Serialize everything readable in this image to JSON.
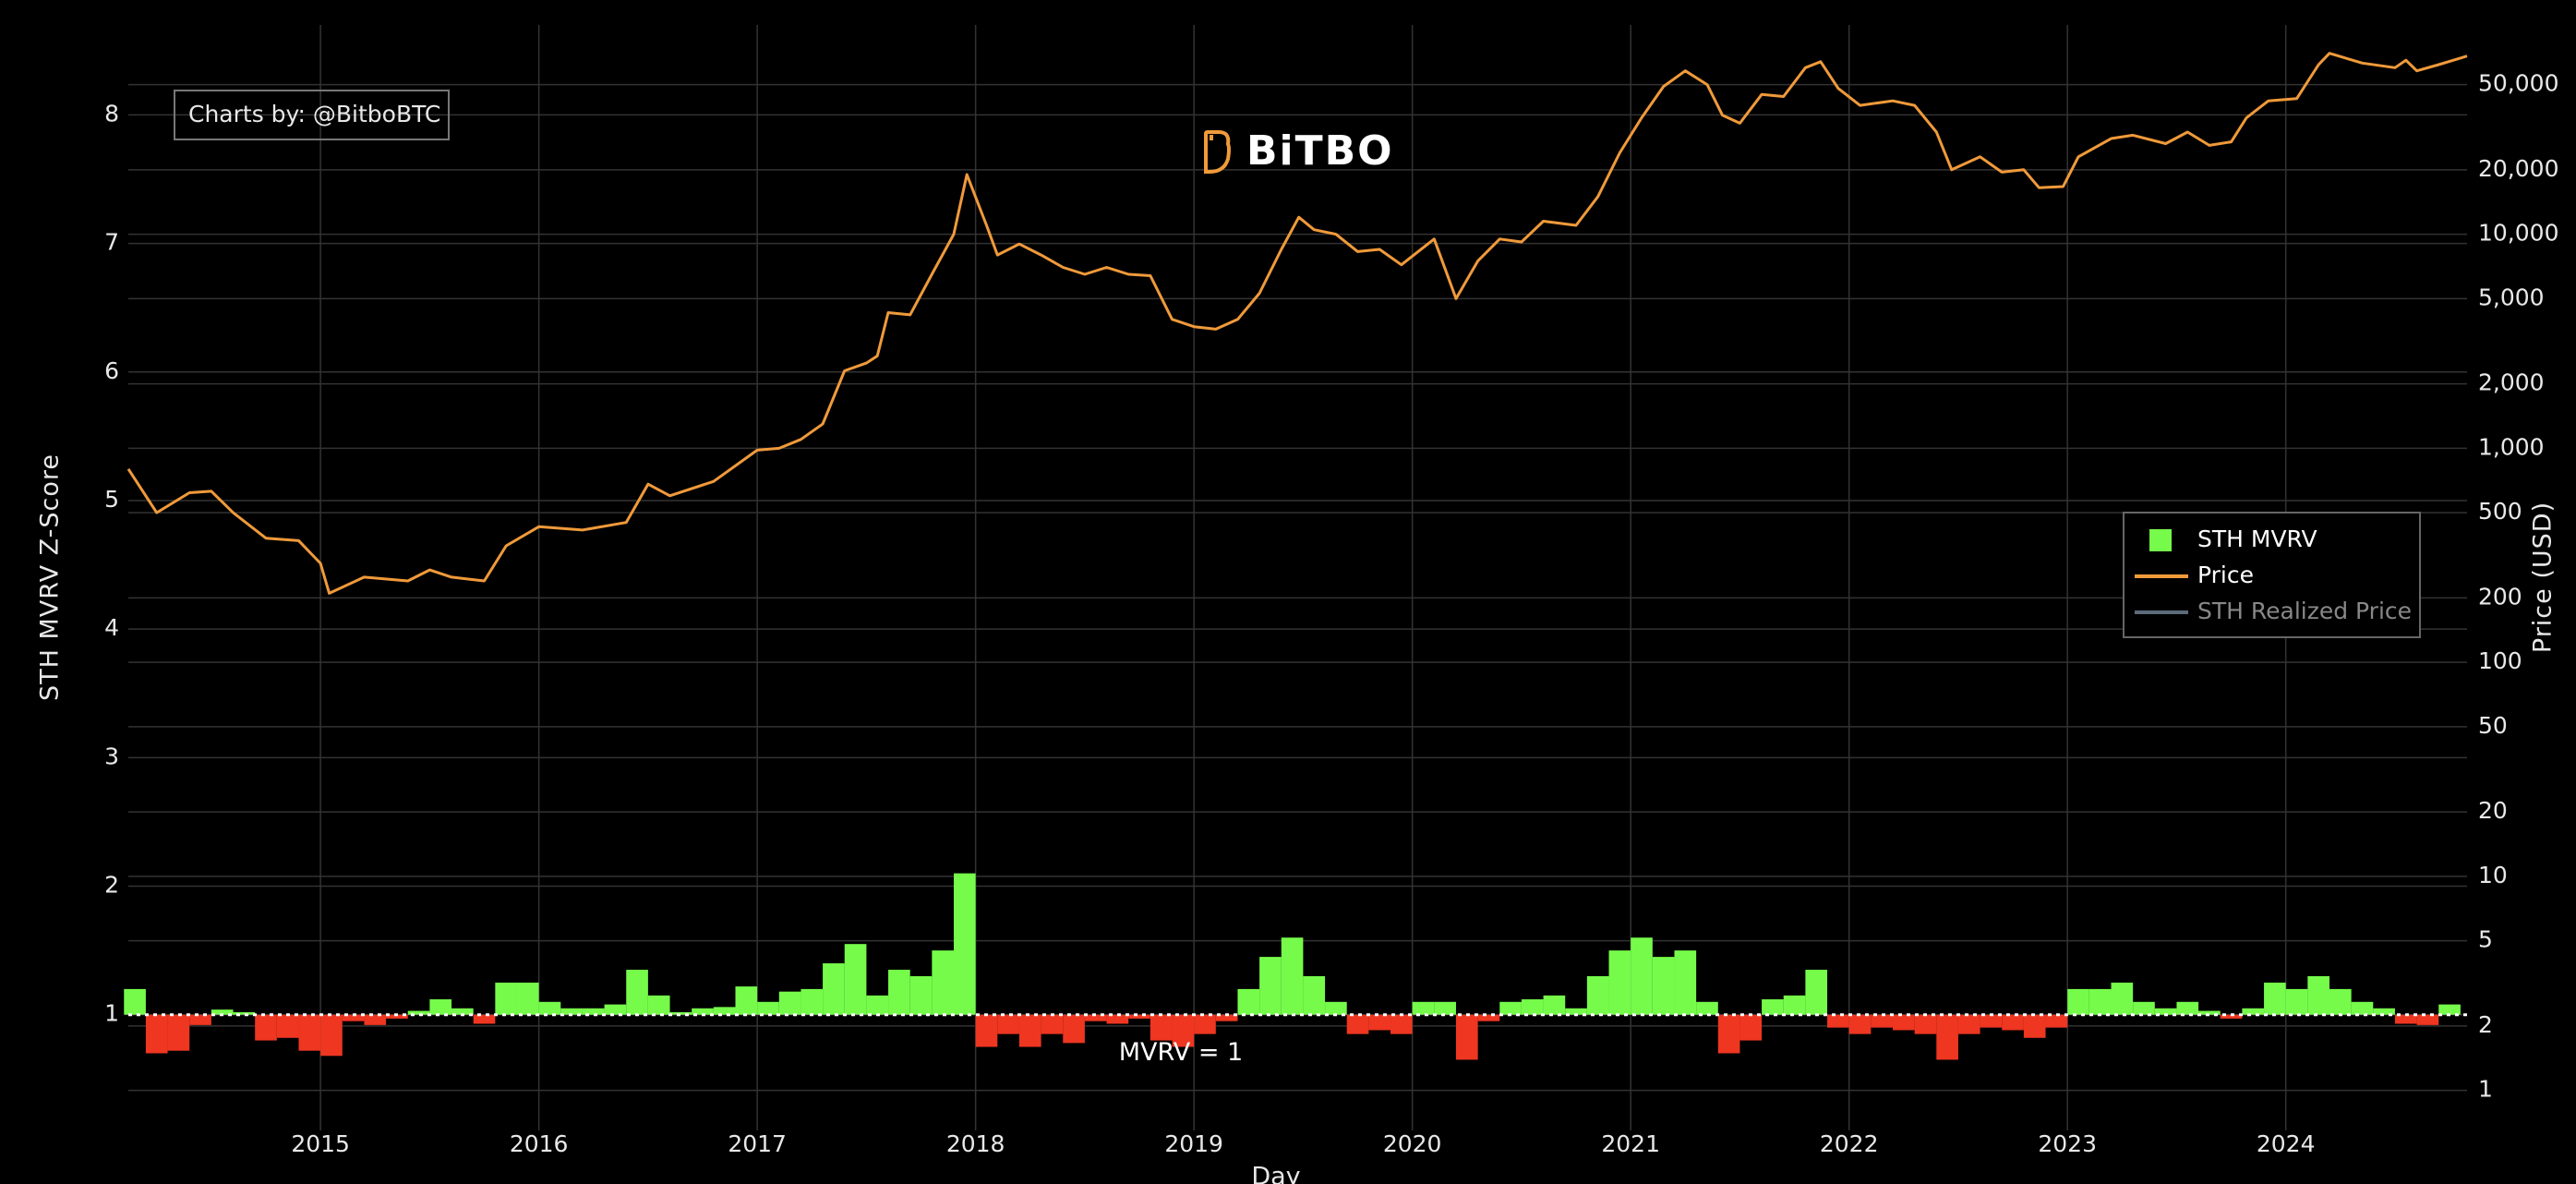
{
  "chart_data": {
    "type": "bar-line",
    "logo": "BiTBO",
    "credit": "Charts by: @BitboBTC",
    "x_label": "Day",
    "y_label": "STH MVRV Z-Score",
    "y2_label": "Price (USD)",
    "reference_line": {
      "y": 1,
      "label": "MVRV = 1"
    },
    "xlim": [
      2014.12,
      2024.83
    ],
    "xticks": [
      2015,
      2016,
      2017,
      2018,
      2019,
      2020,
      2021,
      2022,
      2023,
      2024
    ],
    "ylim": [
      0.1,
      8.7
    ],
    "yticks": [
      1,
      2,
      3,
      4,
      5,
      6,
      7,
      8
    ],
    "y2lim": [
      0.65,
      95000
    ],
    "y2log": true,
    "y2ticks": [
      1,
      2,
      5,
      10,
      20,
      50,
      100,
      200,
      500,
      {
        "value": 1000,
        "label": "1,000"
      },
      {
        "value": 2000,
        "label": "2,000"
      },
      {
        "value": 5000,
        "label": "5,000"
      },
      {
        "value": 10000,
        "label": "10,000"
      },
      {
        "value": 20000,
        "label": "20,000"
      },
      {
        "value": 50000,
        "label": "50,000"
      }
    ],
    "grid": true,
    "legend_position": "right",
    "series": [
      {
        "name": "STH MVRV",
        "type": "bar",
        "color": "#76fb4a",
        "negative_color": "#ee3621",
        "x": [
          2014.15,
          2014.25,
          2014.35,
          2014.45,
          2014.55,
          2014.65,
          2014.75,
          2014.85,
          2014.95,
          2015.05,
          2015.15,
          2015.25,
          2015.35,
          2015.45,
          2015.55,
          2015.65,
          2015.75,
          2015.85,
          2015.95,
          2016.05,
          2016.15,
          2016.25,
          2016.35,
          2016.45,
          2016.55,
          2016.65,
          2016.75,
          2016.85,
          2016.95,
          2017.05,
          2017.15,
          2017.25,
          2017.35,
          2017.45,
          2017.55,
          2017.65,
          2017.75,
          2017.85,
          2017.95,
          2018.05,
          2018.15,
          2018.25,
          2018.35,
          2018.45,
          2018.55,
          2018.65,
          2018.75,
          2018.85,
          2018.95,
          2019.05,
          2019.15,
          2019.25,
          2019.35,
          2019.45,
          2019.55,
          2019.65,
          2019.75,
          2019.85,
          2019.95,
          2020.05,
          2020.15,
          2020.25,
          2020.35,
          2020.45,
          2020.55,
          2020.65,
          2020.75,
          2020.85,
          2020.95,
          2021.05,
          2021.15,
          2021.25,
          2021.35,
          2021.45,
          2021.55,
          2021.65,
          2021.75,
          2021.85,
          2021.95,
          2022.05,
          2022.15,
          2022.25,
          2022.35,
          2022.45,
          2022.55,
          2022.65,
          2022.75,
          2022.85,
          2022.95,
          2023.05,
          2023.15,
          2023.25,
          2023.35,
          2023.45,
          2023.55,
          2023.65,
          2023.75,
          2023.85,
          2023.95,
          2024.05,
          2024.15,
          2024.25,
          2024.35,
          2024.45,
          2024.55,
          2024.65,
          2024.75
        ],
        "values": [
          1.2,
          0.7,
          0.72,
          0.92,
          1.04,
          1.02,
          0.8,
          0.82,
          0.72,
          0.68,
          0.95,
          0.92,
          0.97,
          1.03,
          1.12,
          1.05,
          0.93,
          1.25,
          1.25,
          1.1,
          1.05,
          1.05,
          1.08,
          1.35,
          1.15,
          1.02,
          1.05,
          1.06,
          1.22,
          1.1,
          1.18,
          1.2,
          1.4,
          1.55,
          1.15,
          1.35,
          1.3,
          1.5,
          2.1,
          0.75,
          0.85,
          0.75,
          0.85,
          0.78,
          0.95,
          0.93,
          0.97,
          0.8,
          0.75,
          0.85,
          0.95,
          1.2,
          1.45,
          1.6,
          1.3,
          1.1,
          0.85,
          0.88,
          0.85,
          1.1,
          1.1,
          0.65,
          0.95,
          1.1,
          1.12,
          1.15,
          1.05,
          1.3,
          1.5,
          1.6,
          1.45,
          1.5,
          1.1,
          0.7,
          0.8,
          1.12,
          1.15,
          1.35,
          0.9,
          0.85,
          0.9,
          0.88,
          0.85,
          0.65,
          0.85,
          0.9,
          0.88,
          0.82,
          0.9,
          1.2,
          1.2,
          1.25,
          1.1,
          1.05,
          1.1,
          1.03,
          0.97,
          1.05,
          1.25,
          1.2,
          1.3,
          1.2,
          1.1,
          1.05,
          0.93,
          0.92,
          1.08
        ]
      },
      {
        "name": "Price",
        "type": "line",
        "axis": "y2",
        "color": "#f09a3a",
        "x": [
          2014.12,
          2014.25,
          2014.4,
          2014.5,
          2014.6,
          2014.75,
          2014.9,
          2015.0,
          2015.04,
          2015.2,
          2015.4,
          2015.5,
          2015.6,
          2015.75,
          2015.85,
          2016.0,
          2016.2,
          2016.4,
          2016.5,
          2016.6,
          2016.8,
          2017.0,
          2017.1,
          2017.2,
          2017.3,
          2017.4,
          2017.5,
          2017.55,
          2017.6,
          2017.7,
          2017.8,
          2017.9,
          2017.96,
          2018.05,
          2018.1,
          2018.2,
          2018.3,
          2018.4,
          2018.5,
          2018.6,
          2018.7,
          2018.8,
          2018.9,
          2019.0,
          2019.1,
          2019.2,
          2019.3,
          2019.4,
          2019.48,
          2019.55,
          2019.65,
          2019.75,
          2019.85,
          2019.95,
          2020.1,
          2020.2,
          2020.3,
          2020.4,
          2020.5,
          2020.6,
          2020.75,
          2020.85,
          2020.95,
          2021.05,
          2021.15,
          2021.25,
          2021.35,
          2021.42,
          2021.5,
          2021.6,
          2021.7,
          2021.8,
          2021.87,
          2021.95,
          2022.05,
          2022.2,
          2022.3,
          2022.4,
          2022.47,
          2022.6,
          2022.7,
          2022.8,
          2022.87,
          2022.98,
          2023.05,
          2023.2,
          2023.3,
          2023.45,
          2023.55,
          2023.65,
          2023.75,
          2023.82,
          2023.92,
          2024.05,
          2024.15,
          2024.2,
          2024.35,
          2024.5,
          2024.55,
          2024.6,
          2024.7,
          2024.83
        ],
        "values": [
          800,
          500,
          620,
          630,
          500,
          380,
          370,
          290,
          210,
          250,
          240,
          270,
          250,
          240,
          350,
          430,
          415,
          450,
          680,
          600,
          700,
          980,
          1000,
          1100,
          1300,
          2300,
          2500,
          2700,
          4300,
          4200,
          6500,
          10000,
          19000,
          11000,
          8000,
          9000,
          8000,
          7000,
          6500,
          7000,
          6500,
          6400,
          4000,
          3700,
          3600,
          4000,
          5300,
          8500,
          12000,
          10500,
          10000,
          8300,
          8500,
          7200,
          9500,
          5000,
          7500,
          9500,
          9200,
          11500,
          11000,
          15000,
          24000,
          35000,
          49000,
          58000,
          50000,
          36000,
          33000,
          45000,
          44000,
          60000,
          64000,
          48000,
          40000,
          42000,
          40000,
          30000,
          20000,
          23000,
          19500,
          20000,
          16500,
          16700,
          23000,
          28000,
          29000,
          26500,
          30000,
          26000,
          27000,
          35000,
          42000,
          43000,
          62000,
          70000,
          63000,
          60000,
          65000,
          58000,
          62000,
          68000
        ]
      },
      {
        "name": "STH Realized Price",
        "type": "line",
        "axis": "y2",
        "color": "#5c6b7a",
        "visible": false
      }
    ]
  }
}
